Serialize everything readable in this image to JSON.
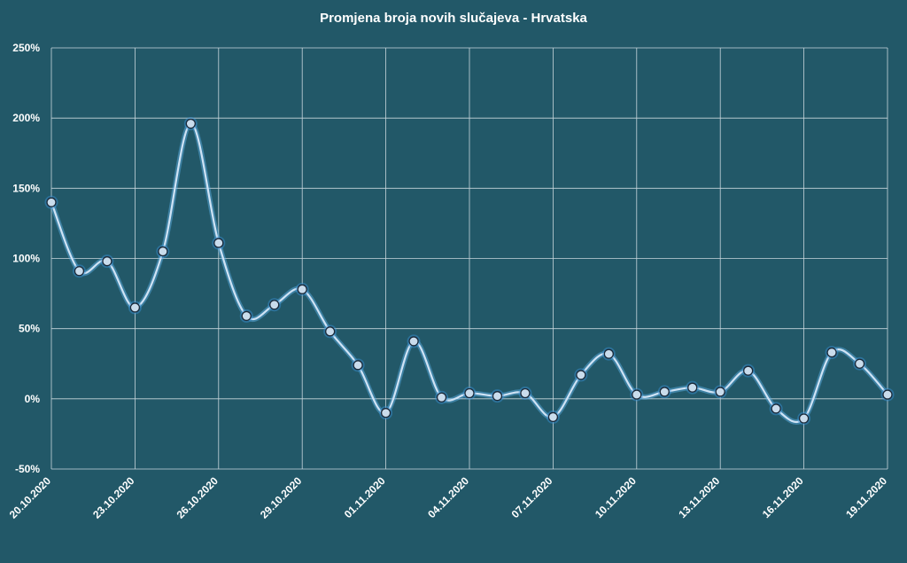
{
  "chart_data": {
    "type": "line",
    "title": "Promjena broja novih slučajeva - Hrvatska",
    "xlabel": "",
    "ylabel": "",
    "y_unit": "%",
    "ylim": [
      -50,
      250
    ],
    "y_ticks": [
      -50,
      0,
      50,
      100,
      150,
      200,
      250
    ],
    "y_tick_labels": [
      "-50%",
      "0%",
      "50%",
      "100%",
      "150%",
      "200%",
      "250%"
    ],
    "grid": true,
    "legend": "none",
    "line_color": "#cfe3f5",
    "marker_color": "#c9dcec",
    "x_tick_labels": [
      "20.10.2020",
      "23.10.2020",
      "26.10.2020",
      "29.10.2020",
      "01.11.2020",
      "04.11.2020",
      "07.11.2020",
      "10.11.2020",
      "13.11.2020",
      "16.11.2020",
      "19.11.2020"
    ],
    "x": [
      "20.10.2020",
      "21.10.2020",
      "22.10.2020",
      "23.10.2020",
      "24.10.2020",
      "25.10.2020",
      "26.10.2020",
      "27.10.2020",
      "28.10.2020",
      "29.10.2020",
      "30.10.2020",
      "31.10.2020",
      "01.11.2020",
      "02.11.2020",
      "03.11.2020",
      "04.11.2020",
      "05.11.2020",
      "06.11.2020",
      "07.11.2020",
      "08.11.2020",
      "09.11.2020",
      "10.11.2020",
      "11.11.2020",
      "12.11.2020",
      "13.11.2020",
      "14.11.2020",
      "15.11.2020",
      "16.11.2020",
      "17.11.2020",
      "18.11.2020",
      "19.11.2020"
    ],
    "series": [
      {
        "values": [
          140,
          91,
          98,
          65,
          105,
          196,
          111,
          59,
          67,
          78,
          48,
          24,
          -10,
          41,
          1,
          4,
          2,
          4,
          -13,
          17,
          32,
          3,
          5,
          8,
          5,
          20,
          -7,
          -14,
          33,
          25,
          3
        ]
      }
    ]
  }
}
